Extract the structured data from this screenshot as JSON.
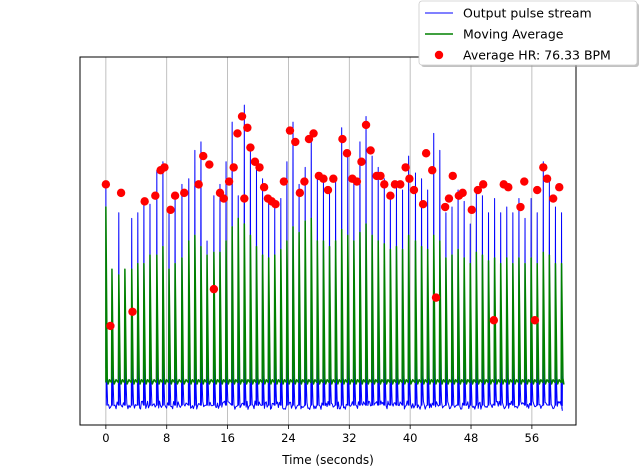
{
  "chart_data": {
    "type": "line",
    "title": "",
    "xlabel": "Time (seconds)",
    "ylabel": "",
    "xlim": [
      -3.4,
      61.8
    ],
    "ylim": [
      -0.15,
      1.15
    ],
    "xticks": [
      0,
      8,
      16,
      24,
      32,
      40,
      48,
      56
    ],
    "xtick_labels": [
      "0",
      "8",
      "16",
      "24",
      "32",
      "40",
      "48",
      "56"
    ],
    "grid": {
      "x": true,
      "y": false
    },
    "legend": {
      "placement": "top-right outside",
      "entries": [
        {
          "label": "Output pulse stream",
          "kind": "line",
          "color": "#0000ff"
        },
        {
          "label": "Moving Average",
          "kind": "line",
          "color": "#008000"
        },
        {
          "label": "Average HR: 76.33 BPM",
          "kind": "marker",
          "color": "#ff0000"
        }
      ]
    },
    "pulse_stream": {
      "name": "Output pulse stream",
      "color": "#0000ff",
      "x_start": 0.0,
      "x_end": 60.0,
      "baseline": -0.1,
      "peak_times": [
        0.0,
        0.8,
        1.7,
        2.5,
        3.4,
        4.2,
        5.0,
        5.8,
        6.7,
        7.5,
        8.3,
        9.1,
        10.0,
        10.9,
        11.7,
        12.5,
        13.3,
        14.2,
        15.0,
        15.8,
        16.6,
        17.4,
        18.2,
        19.0,
        19.8,
        20.6,
        21.4,
        22.2,
        23.0,
        23.8,
        24.6,
        25.4,
        26.2,
        27.0,
        27.8,
        28.6,
        29.4,
        30.2,
        31.0,
        31.8,
        32.6,
        33.4,
        34.2,
        35.0,
        35.8,
        36.6,
        37.4,
        38.2,
        39.0,
        39.8,
        40.7,
        41.5,
        42.3,
        43.1,
        43.9,
        44.7,
        45.5,
        46.3,
        47.1,
        47.9,
        48.7,
        49.5,
        50.3,
        51.1,
        51.9,
        52.7,
        53.5,
        54.3,
        55.1,
        55.9,
        56.7,
        57.5,
        58.3,
        59.1,
        59.9
      ],
      "peak_values": [
        0.7,
        0.2,
        0.6,
        0.25,
        0.58,
        0.6,
        0.65,
        0.63,
        0.75,
        0.78,
        0.62,
        0.66,
        0.7,
        0.72,
        0.82,
        0.85,
        0.5,
        0.66,
        0.7,
        0.78,
        0.92,
        0.66,
        0.98,
        0.83,
        0.76,
        0.72,
        0.64,
        0.62,
        0.65,
        0.78,
        0.92,
        0.7,
        0.76,
        0.88,
        0.72,
        0.72,
        0.68,
        0.72,
        0.9,
        0.8,
        0.72,
        0.85,
        0.94,
        0.8,
        0.76,
        0.72,
        0.66,
        0.7,
        0.68,
        0.8,
        0.74,
        0.72,
        0.68,
        0.88,
        0.82,
        0.6,
        0.62,
        0.68,
        0.64,
        0.56,
        0.68,
        0.66,
        0.6,
        0.65,
        0.6,
        0.62,
        0.6,
        0.65,
        0.58,
        0.65,
        0.6,
        0.78,
        0.72,
        0.62,
        0.6
      ]
    },
    "moving_average": {
      "name": "Moving Average",
      "color": "#008000",
      "baseline": 0.0,
      "peak_values": [
        0.62,
        0.4,
        0.38,
        0.4,
        0.4,
        0.42,
        0.42,
        0.45,
        0.45,
        0.48,
        0.4,
        0.42,
        0.44,
        0.5,
        0.52,
        0.48,
        0.45,
        0.46,
        0.46,
        0.5,
        0.55,
        0.58,
        0.56,
        0.52,
        0.48,
        0.45,
        0.44,
        0.45,
        0.47,
        0.5,
        0.55,
        0.53,
        0.57,
        0.58,
        0.5,
        0.5,
        0.48,
        0.5,
        0.54,
        0.52,
        0.5,
        0.53,
        0.56,
        0.52,
        0.5,
        0.49,
        0.47,
        0.48,
        0.47,
        0.52,
        0.5,
        0.48,
        0.47,
        0.52,
        0.5,
        0.44,
        0.45,
        0.47,
        0.44,
        0.42,
        0.46,
        0.45,
        0.43,
        0.44,
        0.42,
        0.44,
        0.42,
        0.44,
        0.42,
        0.44,
        0.42,
        0.46,
        0.45,
        0.42,
        0.42
      ]
    },
    "detected_peaks": {
      "name": "Average HR: 76.33 BPM",
      "color": "#ff0000",
      "x": [
        0.0,
        0.6,
        2.0,
        3.5,
        5.1,
        6.5,
        7.2,
        7.7,
        8.5,
        9.1,
        10.3,
        12.2,
        12.8,
        13.6,
        14.2,
        15.0,
        15.5,
        16.2,
        16.8,
        17.3,
        17.9,
        18.2,
        18.6,
        19.0,
        19.6,
        20.2,
        20.8,
        21.3,
        21.8,
        22.3,
        23.4,
        24.2,
        24.9,
        25.5,
        26.1,
        26.7,
        27.3,
        28.0,
        28.6,
        29.2,
        29.9,
        31.1,
        31.7,
        32.4,
        33.0,
        33.6,
        34.2,
        34.8,
        35.6,
        36.1,
        36.6,
        37.4,
        38.0,
        38.7,
        39.4,
        39.9,
        40.5,
        41.7,
        42.1,
        42.9,
        43.4,
        44.6,
        45.1,
        45.6,
        46.4,
        46.9,
        48.1,
        48.9,
        49.6,
        51.0,
        52.3,
        52.9,
        54.5,
        55.0,
        56.4,
        56.7,
        57.5,
        58.0,
        58.8,
        59.6
      ],
      "y": [
        0.7,
        0.2,
        0.67,
        0.25,
        0.64,
        0.66,
        0.75,
        0.76,
        0.61,
        0.66,
        0.67,
        0.7,
        0.8,
        0.77,
        0.33,
        0.67,
        0.65,
        0.71,
        0.76,
        0.88,
        0.94,
        0.65,
        0.9,
        0.83,
        0.78,
        0.76,
        0.69,
        0.65,
        0.64,
        0.63,
        0.71,
        0.89,
        0.85,
        0.67,
        0.71,
        0.86,
        0.88,
        0.73,
        0.72,
        0.68,
        0.72,
        0.86,
        0.81,
        0.72,
        0.71,
        0.78,
        0.91,
        0.82,
        0.73,
        0.73,
        0.7,
        0.66,
        0.7,
        0.7,
        0.76,
        0.72,
        0.68,
        0.63,
        0.81,
        0.75,
        0.3,
        0.62,
        0.65,
        0.73,
        0.66,
        0.67,
        0.61,
        0.68,
        0.7,
        0.22,
        0.7,
        0.69,
        0.62,
        0.71,
        0.22,
        0.68,
        0.76,
        0.72,
        0.65,
        0.69
      ]
    }
  }
}
